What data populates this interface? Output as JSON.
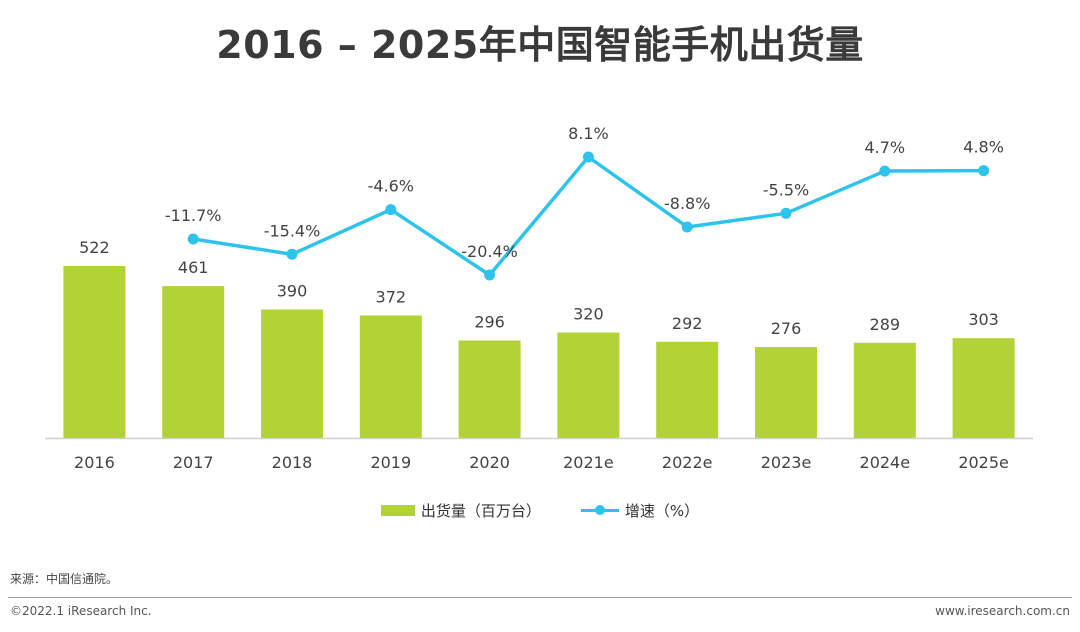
{
  "title": "2016 – 2025年中国智能手机出货量",
  "colors": {
    "bar": "#b2d235",
    "line": "#2ec3ea",
    "axis": "#cfcfcf",
    "label": "#444444"
  },
  "chart_data": {
    "type": "bar",
    "categories": [
      "2016",
      "2017",
      "2018",
      "2019",
      "2020",
      "2021e",
      "2022e",
      "2023e",
      "2024e",
      "2025e"
    ],
    "series": [
      {
        "name": "出货量（百万台）",
        "type": "bar",
        "values": [
          522,
          461,
          390,
          372,
          296,
          320,
          292,
          276,
          289,
          303
        ],
        "labels": [
          "522",
          "461",
          "390",
          "372",
          "296",
          "320",
          "292",
          "276",
          "289",
          "303"
        ]
      },
      {
        "name": "增速（%）",
        "type": "line",
        "values": [
          null,
          -11.7,
          -15.4,
          -4.6,
          -20.4,
          8.1,
          -8.8,
          -5.5,
          4.7,
          4.8
        ],
        "labels": [
          "",
          "-11.7%",
          "-15.4%",
          "-4.6%",
          "-20.4%",
          "8.1%",
          "-8.8%",
          "-5.5%",
          "4.7%",
          "4.8%"
        ]
      }
    ],
    "bar_ylim": [
      0,
      522
    ],
    "line_ylim": [
      -20.4,
      8.1
    ],
    "legend_position": "bottom-center"
  },
  "legend": {
    "bar_label": "出货量（百万台）",
    "line_label": "增速（%）"
  },
  "source": "来源：中国信通院。",
  "copyright": "©2022.1 iResearch Inc.",
  "website": "www.iresearch.com.cn"
}
